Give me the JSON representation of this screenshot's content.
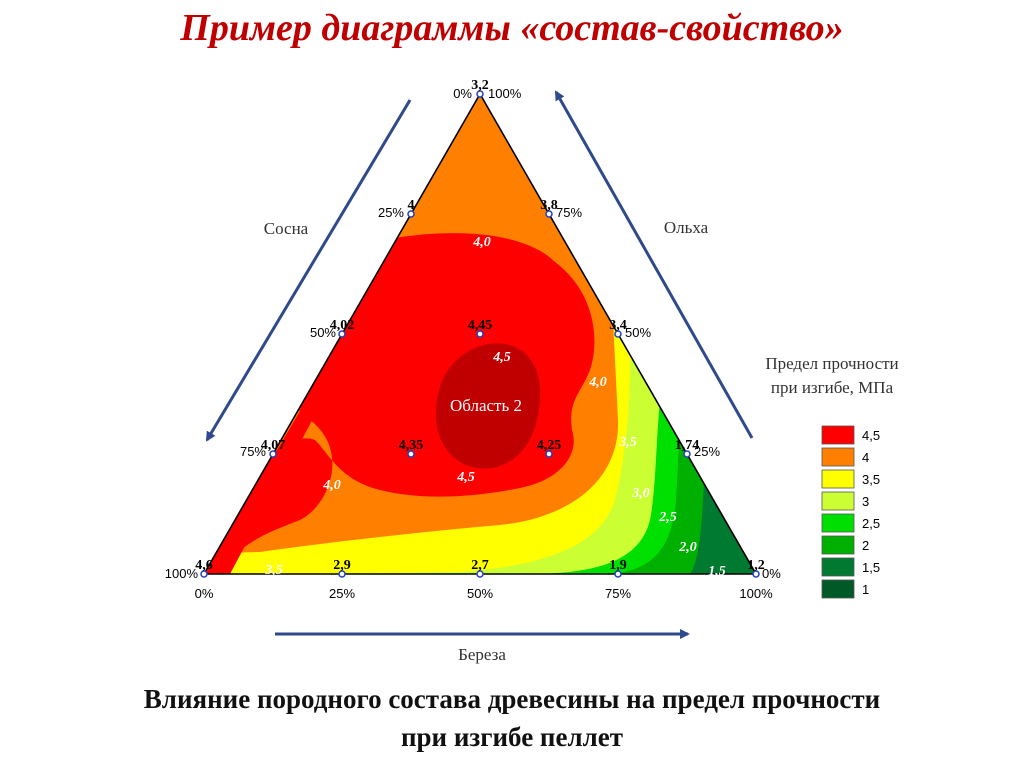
{
  "slide": {
    "title": "Пример диаграммы «состав-свойство»",
    "caption_line1": "Влияние породного состава древесины на предел прочности",
    "caption_line2": "при изгибе пеллет"
  },
  "chart_data": {
    "type": "ternary-contour",
    "axes": {
      "left": "Сосна",
      "right": "Ольха",
      "bottom": "Береза"
    },
    "bottom_ticks": [
      "0%",
      "25%",
      "50%",
      "75%",
      "100%"
    ],
    "left_ticks": [
      "0%",
      "25%",
      "50%",
      "75%",
      "100%"
    ],
    "right_ticks": [
      "100%",
      "75%",
      "50%",
      "25%",
      "0%"
    ],
    "legend": {
      "title_line1": "Предел прочности",
      "title_line2": "при изгибе, МПа",
      "items": [
        {
          "label": "4,5",
          "color": "#ff0000"
        },
        {
          "label": "4",
          "color": "#ff8000"
        },
        {
          "label": "3,5",
          "color": "#ffff00"
        },
        {
          "label": "3",
          "color": "#ccff33"
        },
        {
          "label": "2,5",
          "color": "#00e000"
        },
        {
          "label": "2",
          "color": "#00b000"
        },
        {
          "label": "1,5",
          "color": "#007a30"
        },
        {
          "label": "1",
          "color": "#005a28"
        }
      ]
    },
    "region_label": "Область 2",
    "region_color": "#c00000",
    "points": [
      {
        "label": "3,2",
        "pine": 0,
        "birch": 0,
        "alder": 100
      },
      {
        "label": "4",
        "pine": 25,
        "birch": 0,
        "alder": 75
      },
      {
        "label": "3,8",
        "pine": 0,
        "birch": 25,
        "alder": 75
      },
      {
        "label": "4,02",
        "pine": 50,
        "birch": 0,
        "alder": 50
      },
      {
        "label": "4,45",
        "pine": 25,
        "birch": 25,
        "alder": 50
      },
      {
        "label": "3,4",
        "pine": 0,
        "birch": 50,
        "alder": 50
      },
      {
        "label": "4,07",
        "pine": 75,
        "birch": 0,
        "alder": 25
      },
      {
        "label": "4,35",
        "pine": 50,
        "birch": 25,
        "alder": 25
      },
      {
        "label": "4,25",
        "pine": 25,
        "birch": 50,
        "alder": 25
      },
      {
        "label": "1,74",
        "pine": 0,
        "birch": 75,
        "alder": 25
      },
      {
        "label": "4,6",
        "pine": 100,
        "birch": 0,
        "alder": 0
      },
      {
        "label": "2,9",
        "pine": 75,
        "birch": 25,
        "alder": 0
      },
      {
        "label": "2,7",
        "pine": 50,
        "birch": 50,
        "alder": 0
      },
      {
        "label": "1,9",
        "pine": 25,
        "birch": 75,
        "alder": 0
      },
      {
        "label": "1,2",
        "pine": 0,
        "birch": 100,
        "alder": 0
      }
    ],
    "contour_labels": [
      "4,0",
      "4,5",
      "4,5",
      "4,0",
      "4,0",
      "3,5",
      "3,0",
      "2,5",
      "2,0",
      "1,5",
      "3,5"
    ]
  }
}
